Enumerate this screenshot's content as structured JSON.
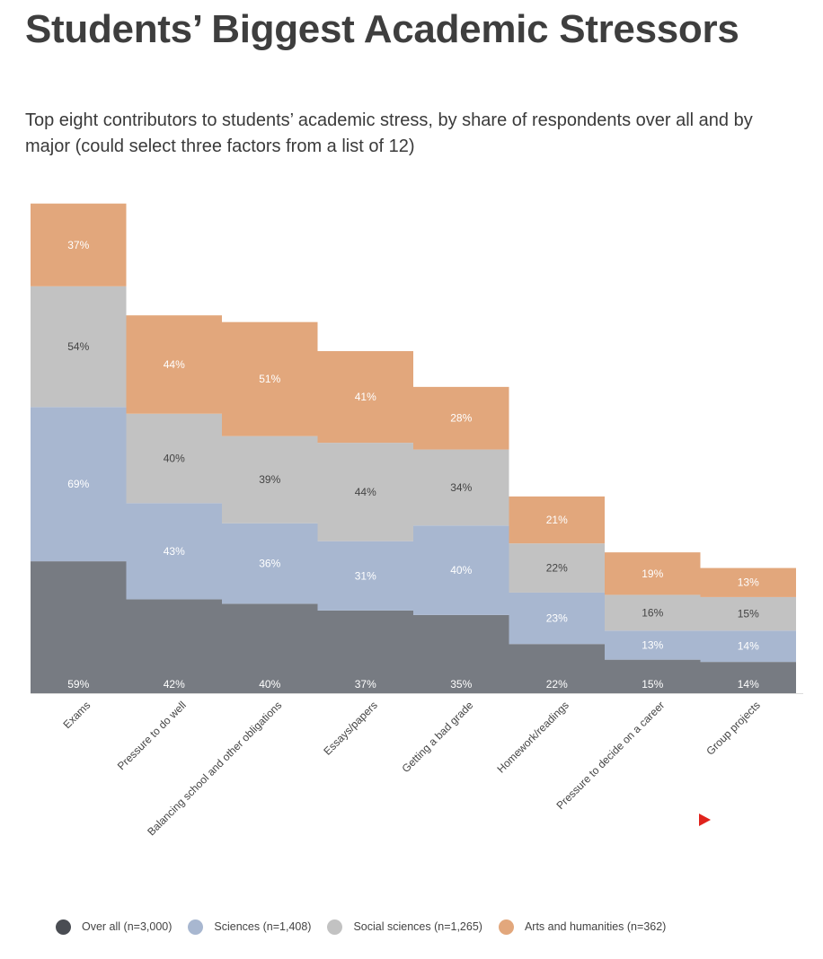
{
  "title": "Students’ Biggest Academic Stressors",
  "subtitle": "Top eight contributors to students’ academic stress, by share of respondents over all and by major (could select three factors from a list of 12)",
  "chart_data": {
    "type": "bar",
    "stacked": true,
    "categories": [
      "Exams",
      "Pressure to do well",
      "Balancing school and other obligations",
      "Essays/papers",
      "Getting a bad grade",
      "Homework/readings",
      "Pressure to decide on a career",
      "Group projects"
    ],
    "series": [
      {
        "name": "Over all (n=3,000)",
        "color": "#777b82",
        "label_color": "#ffffff",
        "values": [
          59,
          42,
          40,
          37,
          35,
          22,
          15,
          14
        ]
      },
      {
        "name": "Sciences (n=1,408)",
        "color": "#a8b7d0",
        "label_color": "#ffffff",
        "values": [
          69,
          43,
          36,
          31,
          40,
          23,
          13,
          14
        ]
      },
      {
        "name": "Social sciences (n=1,265)",
        "color": "#c2c2c2",
        "label_color": "#444444",
        "values": [
          54,
          40,
          39,
          44,
          34,
          22,
          16,
          15
        ]
      },
      {
        "name": "Arts and humanities (n=362)",
        "color": "#e2a77c",
        "label_color": "#ffffff",
        "values": [
          37,
          44,
          51,
          41,
          28,
          21,
          19,
          13
        ]
      }
    ],
    "value_suffix": "%",
    "legend_position": "bottom",
    "grid": false
  }
}
